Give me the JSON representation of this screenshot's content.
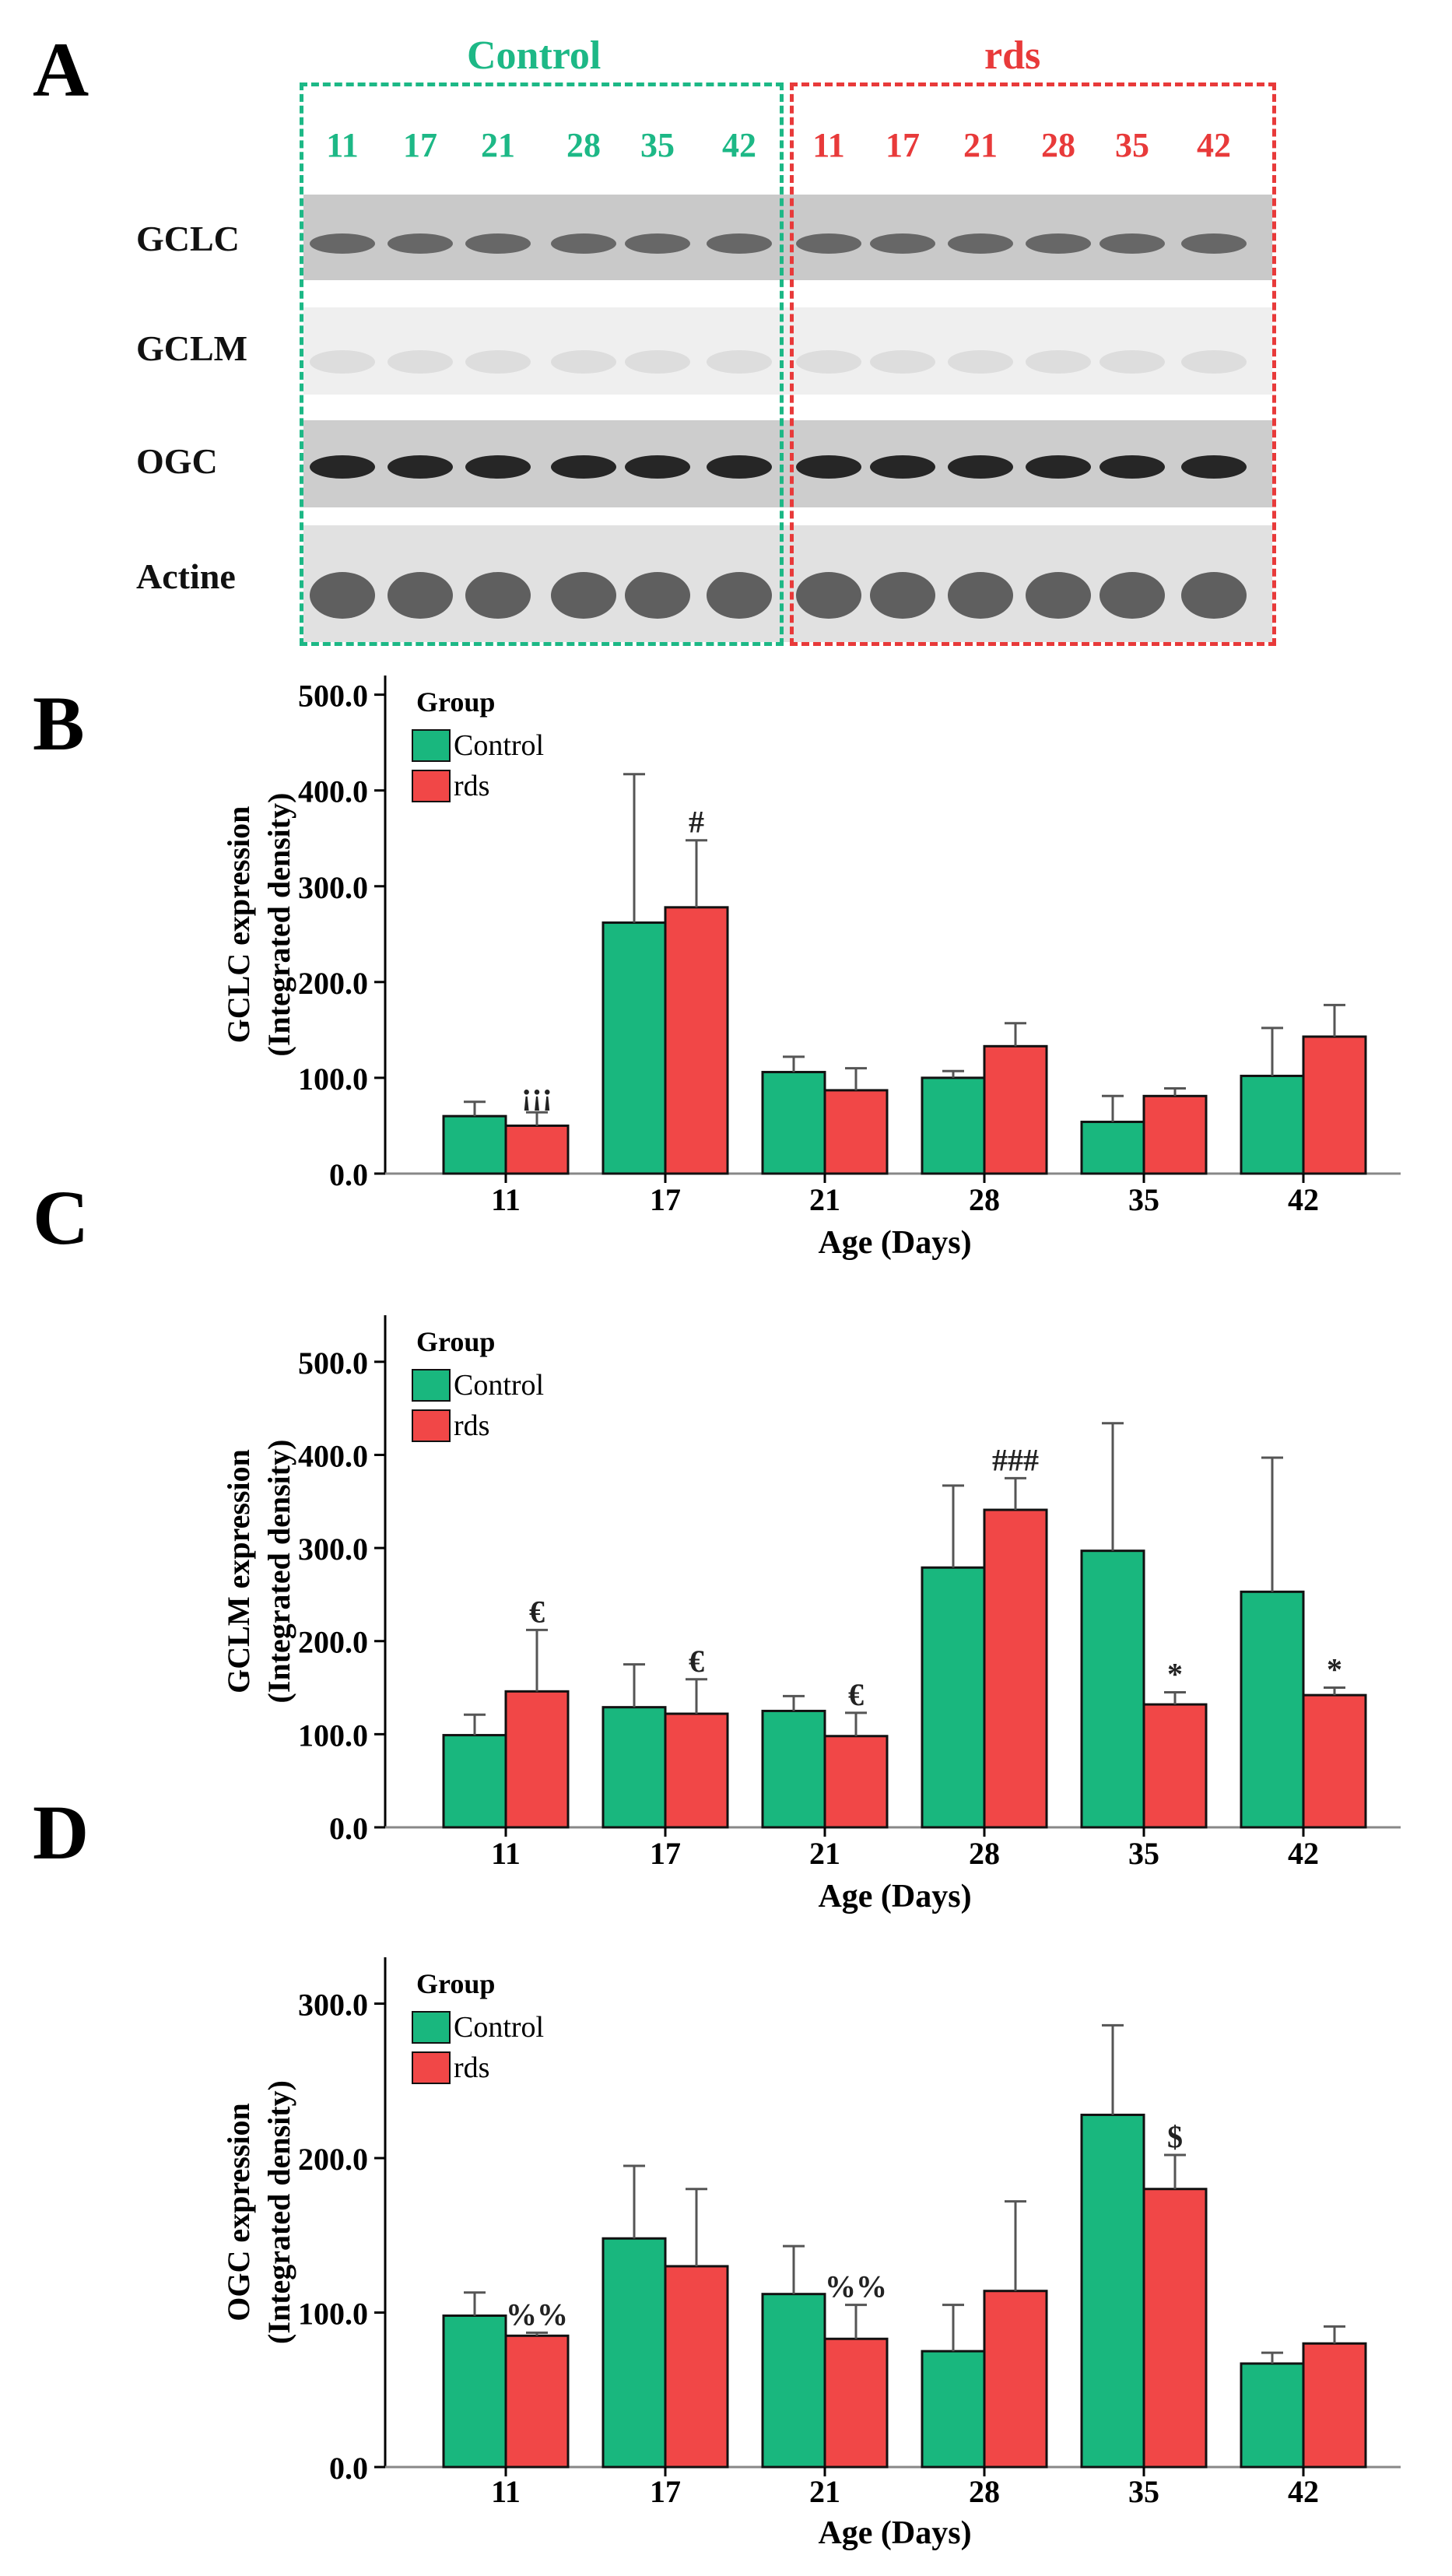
{
  "panel_a": {
    "letter": "A",
    "groups": [
      {
        "name": "Control",
        "color": "#1db886",
        "lanes": [
          "11",
          "17",
          "21",
          "28",
          "35",
          "42"
        ]
      },
      {
        "name": "rds",
        "color": "#e83a3a",
        "lanes": [
          "11",
          "17",
          "21",
          "28",
          "35",
          "42"
        ]
      }
    ],
    "blots": [
      "GCLC",
      "GCLM",
      "OGC",
      "Actine"
    ]
  },
  "colors": {
    "control": "#19b77e",
    "rds": "#f14747"
  },
  "chart_data": [
    {
      "panel": "B",
      "type": "bar",
      "ylabel": "GCLC expression (Integrated density)",
      "ylabel_lines": [
        "GCLC expression",
        "(Integrated density)"
      ],
      "xlabel": "Age (Days)",
      "categories": [
        "11",
        "17",
        "21",
        "28",
        "35",
        "42"
      ],
      "ylim": [
        0,
        520
      ],
      "yticks": [
        "0.0",
        "100.0",
        "200.0",
        "300.0",
        "400.0",
        "500.0"
      ],
      "legend_title": "Group",
      "series": [
        {
          "name": "Control",
          "values": [
            60,
            262,
            106,
            100,
            54,
            102
          ],
          "errors": [
            15,
            155,
            16,
            7,
            27,
            50
          ]
        },
        {
          "name": "rds",
          "values": [
            50,
            278,
            87,
            133,
            81,
            143
          ],
          "errors": [
            14,
            70,
            23,
            24,
            8,
            33
          ]
        }
      ],
      "annotations": [
        {
          "category": "11",
          "series": "rds",
          "text": "¡¡¡"
        },
        {
          "category": "17",
          "series": "rds",
          "text": "#"
        }
      ]
    },
    {
      "panel": "C",
      "type": "bar",
      "ylabel": "GCLM expression (Integrated density)",
      "ylabel_lines": [
        "GCLM expression",
        "(Integrated density)"
      ],
      "xlabel": "Age (Days)",
      "categories": [
        "11",
        "17",
        "21",
        "28",
        "35",
        "42"
      ],
      "ylim": [
        0,
        550
      ],
      "yticks": [
        "0.0",
        "100.0",
        "200.0",
        "300.0",
        "400.0",
        "500.0"
      ],
      "legend_title": "Group",
      "series": [
        {
          "name": "Control",
          "values": [
            99,
            129,
            125,
            279,
            297,
            253
          ],
          "errors": [
            22,
            46,
            16,
            88,
            137,
            144
          ]
        },
        {
          "name": "rds",
          "values": [
            146,
            122,
            98,
            341,
            132,
            142
          ],
          "errors": [
            66,
            37,
            25,
            34,
            13,
            8
          ]
        }
      ],
      "annotations": [
        {
          "category": "11",
          "series": "rds",
          "text": "€"
        },
        {
          "category": "17",
          "series": "rds",
          "text": "€"
        },
        {
          "category": "21",
          "series": "rds",
          "text": "€"
        },
        {
          "category": "28",
          "series": "rds",
          "text": "###"
        },
        {
          "category": "35",
          "series": "rds",
          "text": "*"
        },
        {
          "category": "42",
          "series": "rds",
          "text": "*"
        }
      ]
    },
    {
      "panel": "D",
      "type": "bar",
      "ylabel": "OGC expression (Integrated density)",
      "ylabel_lines": [
        "OGC expression",
        "(Integrated density)"
      ],
      "xlabel": "Age (Days)",
      "categories": [
        "11",
        "17",
        "21",
        "28",
        "35",
        "42"
      ],
      "ylim": [
        0,
        330
      ],
      "yticks": [
        "0.0",
        "100.0",
        "200.0",
        "300.0"
      ],
      "legend_title": "Group",
      "series": [
        {
          "name": "Control",
          "values": [
            98,
            148,
            112,
            75,
            228,
            67
          ],
          "errors": [
            15,
            47,
            31,
            30,
            58,
            7
          ]
        },
        {
          "name": "rds",
          "values": [
            85,
            130,
            83,
            114,
            180,
            80
          ],
          "errors": [
            2,
            50,
            22,
            58,
            22,
            11
          ]
        }
      ],
      "annotations": [
        {
          "category": "11",
          "series": "rds",
          "text": "%%"
        },
        {
          "category": "21",
          "series": "rds",
          "text": "%%"
        },
        {
          "category": "35",
          "series": "rds",
          "text": "$"
        }
      ]
    }
  ]
}
